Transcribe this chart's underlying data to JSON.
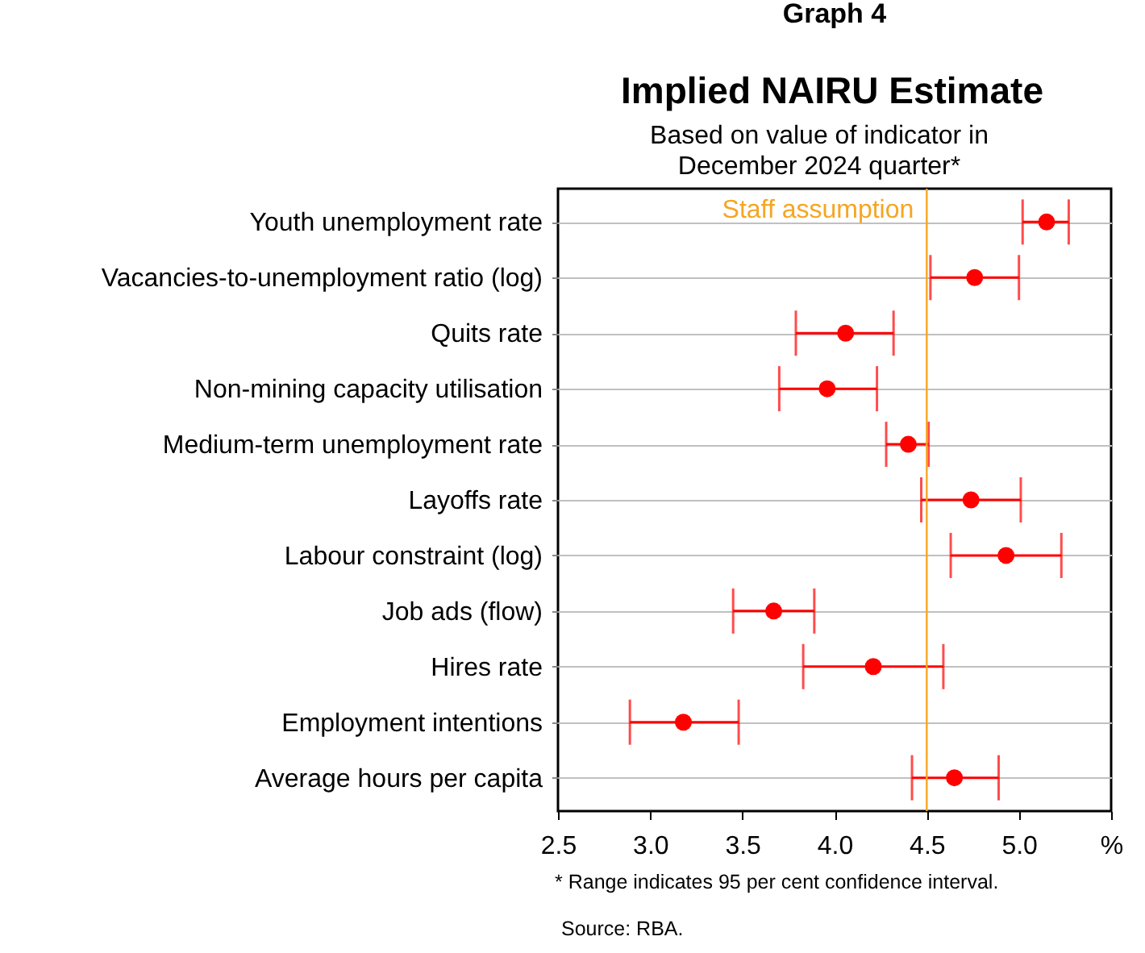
{
  "chart_data": {
    "type": "scatter",
    "orientation": "horizontal",
    "title": "Implied NAIRU Estimate",
    "subtitle": "Based on value of indicator in\nDecember 2024 quarter*",
    "categories": [
      "Youth unemployment rate",
      "Vacancies-to-unemployment ratio (log)",
      "Quits rate",
      "Non-mining capacity utilisation",
      "Medium-term unemployment rate",
      "Layoffs rate",
      "Labour constraint (log)",
      "Job ads (flow)",
      "Hires rate",
      "Employment intentions",
      "Average hours per capita"
    ],
    "series": [
      {
        "color": "#ff0000",
        "values": [
          5.15,
          4.76,
          4.06,
          3.96,
          4.4,
          4.74,
          4.93,
          3.67,
          4.21,
          3.18,
          4.65
        ],
        "errors": [
          [
            5.02,
            5.27
          ],
          [
            4.52,
            5.0
          ],
          [
            3.79,
            4.32
          ],
          [
            3.7,
            4.23
          ],
          [
            4.28,
            4.51
          ],
          [
            4.47,
            5.01
          ],
          [
            4.63,
            5.23
          ],
          [
            3.45,
            3.89
          ],
          [
            3.83,
            4.59
          ],
          [
            2.89,
            3.48
          ],
          [
            4.42,
            4.89
          ]
        ]
      }
    ],
    "xlim": [
      2.5,
      5.5
    ],
    "xticks": [
      2.5,
      {
        "value": 3,
        "label": "3.0"
      },
      3.5,
      {
        "value": 4,
        "label": "4.0"
      },
      4.5,
      {
        "value": 5,
        "label": "5.0"
      },
      {
        "value": 5.5,
        "label": "%"
      }
    ],
    "ref_lines": [
      {
        "axis": "x",
        "value": 4.5,
        "label": "Staff assumption",
        "color": "#f5a623"
      }
    ],
    "grid": "y",
    "marker": "circle",
    "annotations": [
      "Graph 4",
      "*    Range indicates 95 per cent confidence interval.",
      "Source:  RBA."
    ]
  }
}
